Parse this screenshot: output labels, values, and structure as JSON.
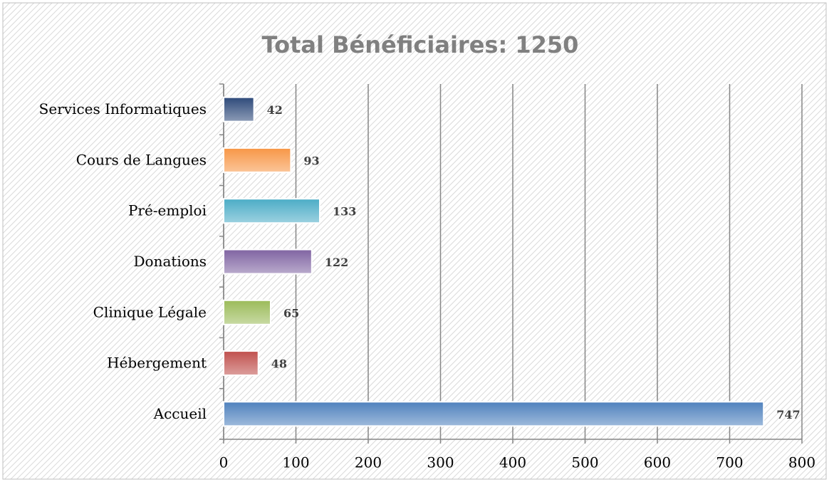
{
  "chart_data": {
    "type": "bar",
    "orientation": "horizontal",
    "title": "Total Bénéficiaires: 1250",
    "categories": [
      "Services Informatiques",
      "Cours de Langues",
      "Pré-emploi",
      "Donations",
      "Clinique Légale",
      "Hébergement",
      "Accueil"
    ],
    "values": [
      42,
      93,
      133,
      122,
      65,
      48,
      747
    ],
    "colors": [
      "#2e4a7a",
      "#f79646",
      "#4bacc6",
      "#8064a2",
      "#9bbb59",
      "#c0504d",
      "#4f81bd"
    ],
    "xlim": [
      0,
      800
    ],
    "xticks": [
      0,
      100,
      200,
      300,
      400,
      500,
      600,
      700,
      800
    ],
    "grid": true
  }
}
